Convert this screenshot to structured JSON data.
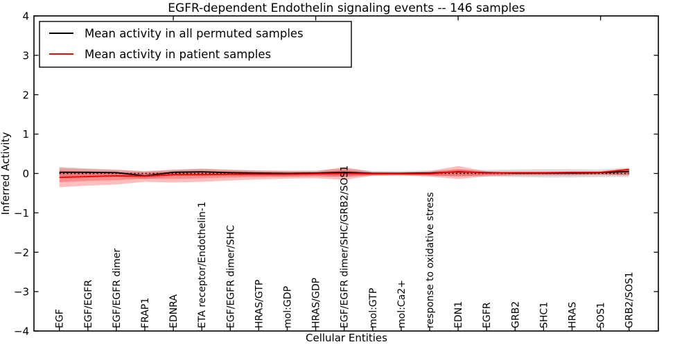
{
  "chart_data": {
    "type": "line",
    "title": "EGFR-dependent Endothelin signaling events -- 146 samples",
    "xlabel": "Cellular Entities",
    "ylabel": "Inferred Activity",
    "ylim": [
      -4,
      4
    ],
    "yticks": [
      4,
      3,
      2,
      1,
      0,
      -1,
      -2,
      -3,
      -4
    ],
    "top_axis_ticks_at_x": [
      5,
      10,
      15,
      20
    ],
    "grid": false,
    "background_color": "#ffffff",
    "legend": {
      "position": "upper left",
      "items": [
        {
          "label": "Mean activity in all permuted samples",
          "color": "#000000"
        },
        {
          "label": "Mean activity in patient samples",
          "color": "#ff0000"
        }
      ]
    },
    "categories": [
      "EGF",
      "EGF/EGFR",
      "EGF/EGFR dimer",
      "FRAP1",
      "EDNRA",
      "ETA receptor/Endothelin-1",
      "EGF/EGFR dimer/SHC",
      "HRAS/GTP",
      "mol:GDP",
      "HRAS/GDP",
      "EGF/EGFR dimer/SHC/GRB2/SOS1",
      "mol:GTP",
      "mol:Ca2+",
      "response to oxidative stress",
      "EDN1",
      "EGFR",
      "GRB2",
      "SHC1",
      "HRAS",
      "SOS1",
      "GRB2/SOS1"
    ],
    "series": [
      {
        "name": "Mean activity in all permuted samples",
        "style": "solid",
        "color": "#000000",
        "values": [
          0.03,
          0.03,
          0.02,
          -0.06,
          0.03,
          0.04,
          0.02,
          0.01,
          0.0,
          0.01,
          0.03,
          0.0,
          0.0,
          0.01,
          0.04,
          0.02,
          0.01,
          0.01,
          0.01,
          0.02,
          0.05
        ]
      },
      {
        "name": "zero reference",
        "style": "dotted",
        "color": "#000000",
        "values": [
          0,
          0,
          0,
          0,
          0,
          0,
          0,
          0,
          0,
          0,
          0,
          0,
          0,
          0,
          0,
          0,
          0,
          0,
          0,
          0,
          0
        ]
      },
      {
        "name": "Mean activity in patient samples",
        "style": "solid",
        "color": "#ff0000",
        "values": [
          -0.1,
          -0.08,
          -0.06,
          -0.07,
          -0.03,
          -0.03,
          -0.02,
          -0.02,
          -0.02,
          -0.01,
          0.0,
          -0.01,
          -0.01,
          -0.01,
          0.05,
          0.01,
          0.02,
          0.02,
          0.03,
          0.03,
          0.1
        ]
      }
    ],
    "bands": [
      {
        "name": "permuted-samples-spread",
        "color": "#000000",
        "opacity": 0.14,
        "upper": [
          0.17,
          0.13,
          0.1,
          0.06,
          0.1,
          0.12,
          0.1,
          0.08,
          0.07,
          0.07,
          0.13,
          0.06,
          0.06,
          0.07,
          0.1,
          0.09,
          0.1,
          0.11,
          0.11,
          0.1,
          0.15
        ],
        "lower": [
          -0.07,
          -0.07,
          -0.08,
          -0.15,
          -0.07,
          -0.06,
          -0.06,
          -0.07,
          -0.08,
          -0.07,
          -0.08,
          -0.06,
          -0.06,
          -0.06,
          -0.06,
          -0.08,
          -0.09,
          -0.1,
          -0.1,
          -0.09,
          -0.09
        ]
      },
      {
        "name": "patient-samples-spread-outer",
        "color": "#ff0000",
        "opacity": 0.26,
        "upper": [
          0.14,
          0.11,
          0.09,
          0.05,
          0.09,
          0.12,
          0.09,
          0.07,
          0.06,
          0.06,
          0.16,
          0.04,
          0.03,
          0.06,
          0.19,
          0.05,
          0.04,
          0.04,
          0.04,
          0.05,
          0.13
        ],
        "lower": [
          -0.35,
          -0.31,
          -0.28,
          -0.21,
          -0.23,
          -0.21,
          -0.18,
          -0.15,
          -0.13,
          -0.12,
          -0.16,
          -0.06,
          -0.05,
          -0.08,
          -0.14,
          -0.07,
          -0.05,
          -0.05,
          -0.05,
          -0.04,
          -0.05
        ]
      },
      {
        "name": "patient-samples-spread-inner",
        "color": "#ff0000",
        "opacity": 0.26,
        "upper": [
          0.07,
          0.05,
          0.04,
          0.02,
          0.05,
          0.06,
          0.05,
          0.04,
          0.03,
          0.03,
          0.09,
          0.02,
          0.02,
          0.03,
          0.11,
          0.03,
          0.02,
          0.02,
          0.02,
          0.03,
          0.12
        ],
        "lower": [
          -0.22,
          -0.19,
          -0.17,
          -0.13,
          -0.14,
          -0.12,
          -0.1,
          -0.09,
          -0.08,
          -0.07,
          -0.09,
          -0.04,
          -0.03,
          -0.05,
          -0.08,
          -0.04,
          -0.03,
          -0.03,
          -0.03,
          -0.02,
          -0.03
        ]
      }
    ]
  }
}
